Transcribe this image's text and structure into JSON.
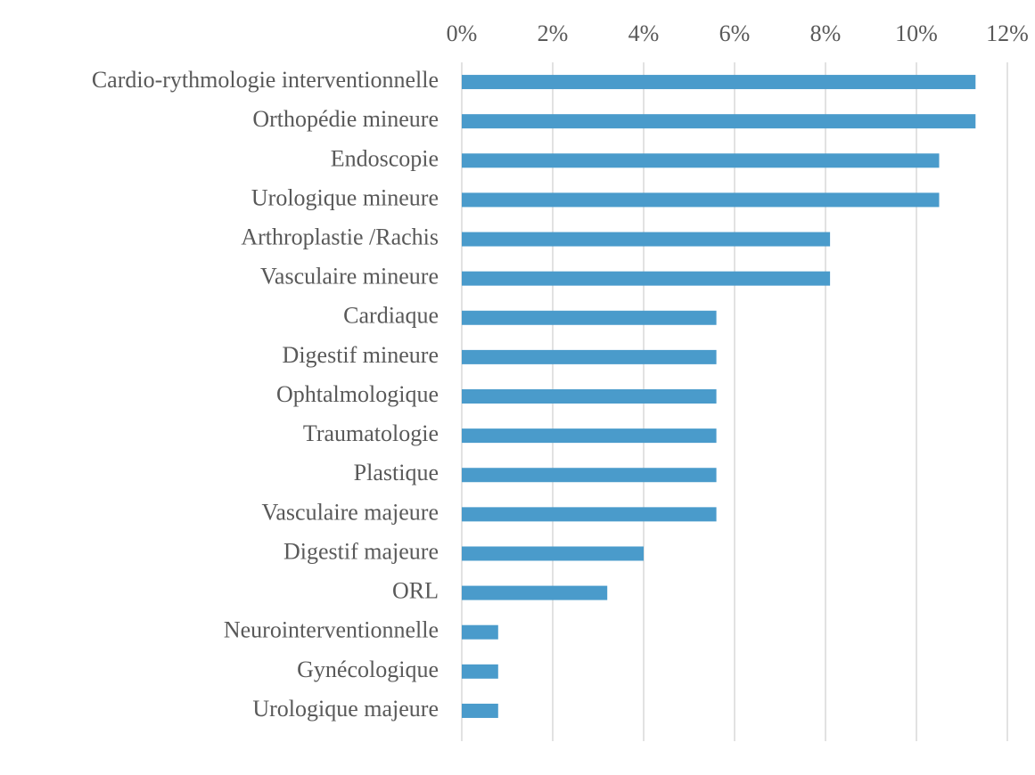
{
  "chart_data": {
    "type": "bar",
    "orientation": "horizontal",
    "categories": [
      "Cardio-rythmologie interventionnelle",
      "Orthopédie mineure",
      "Endoscopie",
      "Urologique mineure",
      "Arthroplastie /Rachis",
      "Vasculaire mineure",
      "Cardiaque",
      "Digestif mineure",
      "Ophtalmologique",
      "Traumatologie",
      "Plastique",
      "Vasculaire majeure",
      "Digestif  majeure",
      "ORL",
      "Neurointerventionnelle",
      "Gynécologique",
      "Urologique majeure"
    ],
    "values": [
      11.3,
      11.3,
      10.5,
      10.5,
      8.1,
      8.1,
      5.6,
      5.6,
      5.6,
      5.6,
      5.6,
      5.6,
      4.0,
      3.2,
      0.8,
      0.8,
      0.8
    ],
    "color": "#4a9bcb",
    "xlim": [
      0,
      12
    ],
    "xticks": [
      {
        "value": 0,
        "label": "0%"
      },
      {
        "value": 2,
        "label": "2%"
      },
      {
        "value": 4,
        "label": "4%"
      },
      {
        "value": 6,
        "label": "6%"
      },
      {
        "value": 8,
        "label": "8%"
      },
      {
        "value": 10,
        "label": "10%"
      },
      {
        "value": 12,
        "label": "12%"
      }
    ],
    "grid": true
  }
}
